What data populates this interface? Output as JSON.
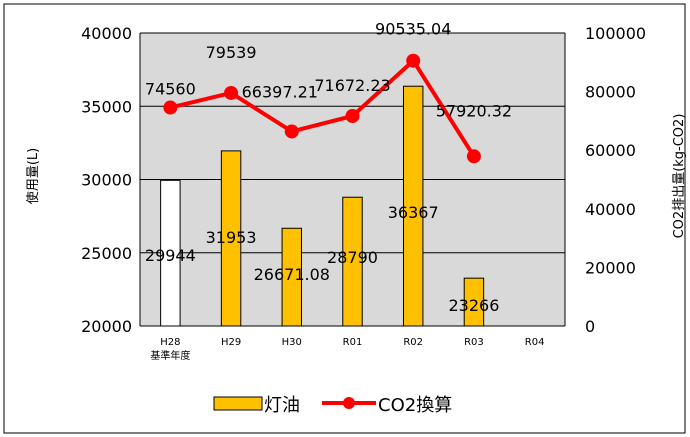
{
  "chart_data": {
    "type": "bar+line",
    "categories": [
      "H28",
      "H29",
      "H30",
      "R01",
      "R02",
      "R03",
      "R04"
    ],
    "category_sublabels": [
      "基準年度",
      "",
      "",
      "",
      "",
      "",
      ""
    ],
    "series": [
      {
        "name": "灯油",
        "type": "bar",
        "axis": "left",
        "values": [
          29944,
          31953,
          26671.08,
          28790,
          36367,
          23266,
          null
        ],
        "labels": [
          "29944",
          "31953",
          "26671.08",
          "28790",
          "36367",
          "23266",
          ""
        ],
        "colors": [
          "#ffffff",
          "#ffc000",
          "#ffc000",
          "#ffc000",
          "#ffc000",
          "#ffc000",
          "#ffc000"
        ]
      },
      {
        "name": "CO2換算",
        "type": "line",
        "axis": "right",
        "values": [
          74560,
          79539,
          66397.21,
          71672.23,
          90535.04,
          57920.32,
          null
        ],
        "labels": [
          "74560",
          "79539",
          "66397.21",
          "71672.23",
          "90535.04",
          "57920.32",
          ""
        ],
        "color": "#ff0000"
      }
    ],
    "ylabel": "使用量(L)",
    "y2label": "CO2排出量(kg-CO2)",
    "ylim": [
      20000,
      40000
    ],
    "y2lim": [
      0,
      100000
    ],
    "yticks": [
      20000,
      25000,
      30000,
      35000,
      40000
    ],
    "y2ticks": [
      0,
      20000,
      40000,
      60000,
      80000,
      100000
    ],
    "grid": true,
    "legend_position": "bottom",
    "plot_background": "#d9d9d9"
  }
}
